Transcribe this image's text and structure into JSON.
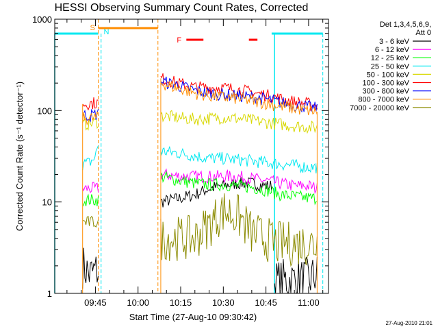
{
  "chart_data": {
    "type": "line",
    "title": "HESSI Observing Summary Count Rates, Corrected",
    "xlabel": "Start Time (27-Aug-10 09:30:42)",
    "ylabel": "Corrected Count Rate (s⁻¹ detector⁻¹)",
    "x_unit": "time (HH:MM, 27-Aug-2010)",
    "xlim": [
      "09:30:42",
      "11:07"
    ],
    "ylim": [
      1,
      1000
    ],
    "y_scale": "log",
    "x_ticks": [
      "09:45",
      "10:00",
      "10:15",
      "10:30",
      "10:45",
      "11:00"
    ],
    "y_ticks": [
      {
        "value": 1,
        "label": "1"
      },
      {
        "value": 10,
        "label": "10"
      },
      {
        "value": 100,
        "label": "100"
      },
      {
        "value": 1000,
        "label": "1000"
      }
    ],
    "legend": {
      "position": "right",
      "header1": "Det 1,3,4,5,6,9,",
      "header2": "Att 0"
    },
    "series": [
      {
        "name": "3 - 6 keV",
        "color": "#000000",
        "segments": [
          {
            "x": [
              "09:40:30",
              "09:43",
              "09:46"
            ],
            "y": [
              2.0,
              1.6,
              1.8
            ]
          },
          {
            "x": [
              "10:08",
              "10:15",
              "10:20",
              "10:25",
              "10:30",
              "10:35",
              "10:40",
              "10:45",
              "10:47"
            ],
            "y": [
              10,
              11,
              12,
              14,
              15,
              16,
              16,
              15,
              15
            ]
          },
          {
            "x": [
              "10:48",
              "10:52",
              "10:56",
              "11:00",
              "11:03"
            ],
            "y": [
              1.3,
              1.4,
              1.4,
              1.4,
              1.6
            ]
          }
        ]
      },
      {
        "name": "6 - 12 keV",
        "color": "#ff00ff",
        "segments": [
          {
            "x": [
              "09:40:30",
              "09:43",
              "09:46"
            ],
            "y": [
              14,
              14,
              14
            ]
          },
          {
            "x": [
              "10:08",
              "10:15",
              "10:20",
              "10:25",
              "10:30",
              "10:35",
              "10:40",
              "10:45",
              "10:50",
              "10:55",
              "11:00",
              "11:03"
            ],
            "y": [
              20,
              19,
              19,
              19,
              19,
              19,
              18,
              17,
              16,
              15,
              15,
              14
            ]
          }
        ]
      },
      {
        "name": "12 - 25 keV",
        "color": "#00ff00",
        "segments": [
          {
            "x": [
              "09:40:30",
              "09:43",
              "09:46"
            ],
            "y": [
              10.5,
              10.5,
              10.5
            ]
          },
          {
            "x": [
              "10:08",
              "10:15",
              "10:20",
              "10:25",
              "10:30",
              "10:35",
              "10:40",
              "10:45",
              "10:50",
              "10:55",
              "11:00",
              "11:03"
            ],
            "y": [
              19,
              17,
              16,
              15.5,
              15.5,
              15,
              14.5,
              13.5,
              12,
              11.5,
              11,
              11
            ]
          }
        ]
      },
      {
        "name": "25 - 50 keV",
        "color": "#00e8f0",
        "segments": [
          {
            "x": [
              "09:40:30",
              "09:43",
              "09:45",
              "09:46"
            ],
            "y": [
              26,
              27,
              31,
              43
            ]
          },
          {
            "x": [
              "10:08",
              "10:15",
              "10:20",
              "10:25",
              "10:30",
              "10:35",
              "10:40",
              "10:45",
              "10:50",
              "10:55",
              "11:00",
              "11:03"
            ],
            "y": [
              36,
              34,
              32,
              30,
              30,
              29,
              28,
              27,
              26,
              25,
              24,
              24
            ]
          }
        ]
      },
      {
        "name": "50 - 100 keV",
        "color": "#d8d800",
        "segments": [
          {
            "x": [
              "09:40:30",
              "09:43",
              "09:46"
            ],
            "y": [
              70,
              72,
              76
            ]
          },
          {
            "x": [
              "10:08",
              "10:15",
              "10:20",
              "10:25",
              "10:30",
              "10:35",
              "10:40",
              "10:45",
              "10:50",
              "10:55",
              "11:00",
              "11:03"
            ],
            "y": [
              88,
              83,
              80,
              82,
              84,
              82,
              78,
              74,
              71,
              68,
              66,
              65
            ]
          }
        ]
      },
      {
        "name": "100 - 300 keV",
        "color": "#ff0000",
        "segments": [
          {
            "x": [
              "09:40:30",
              "09:43",
              "09:46"
            ],
            "y": [
              118,
              120,
              122
            ]
          },
          {
            "x": [
              "10:08",
              "10:15",
              "10:20",
              "10:25",
              "10:30",
              "10:35",
              "10:40",
              "10:45",
              "10:50",
              "10:55",
              "11:00",
              "11:03"
            ],
            "y": [
              225,
              195,
              180,
              178,
              178,
              170,
              158,
              148,
              135,
              125,
              118,
              112
            ]
          }
        ]
      },
      {
        "name": "300 - 800 keV",
        "color": "#0000ff",
        "segments": [
          {
            "x": [
              "09:40:30",
              "09:43",
              "09:46"
            ],
            "y": [
              90,
              88,
              92
            ]
          },
          {
            "x": [
              "10:08",
              "10:15",
              "10:20",
              "10:25",
              "10:30",
              "10:35",
              "10:40",
              "10:45",
              "10:50",
              "10:55",
              "11:00",
              "11:03"
            ],
            "y": [
              210,
              185,
              165,
              155,
              150,
              145,
              140,
              133,
              123,
              115,
              110,
              105
            ]
          }
        ]
      },
      {
        "name": "800 - 7000 keV",
        "color": "#ff8c00",
        "segments": [
          {
            "x": [
              "09:40:30",
              "09:43",
              "09:46"
            ],
            "y": [
              82,
              82,
              84
            ]
          },
          {
            "x": [
              "10:08",
              "10:15",
              "10:20",
              "10:25",
              "10:30",
              "10:35",
              "10:40",
              "10:45",
              "10:50",
              "10:55",
              "11:00",
              "11:03"
            ],
            "y": [
              200,
              172,
              155,
              145,
              140,
              135,
              128,
              120,
              112,
              105,
              100,
              97
            ]
          }
        ]
      },
      {
        "name": "7000 - 20000 keV",
        "color": "#8b8b00",
        "segments": [
          {
            "x": [
              "09:40:30",
              "09:43",
              "09:46"
            ],
            "y": [
              6,
              6,
              6
            ]
          },
          {
            "x": [
              "10:08",
              "10:15",
              "10:20",
              "10:25",
              "10:30",
              "10:35",
              "10:40",
              "10:45",
              "10:48"
            ],
            "y": [
              4,
              4,
              4,
              5.5,
              8,
              7,
              4.5,
              4,
              3.5
            ]
          },
          {
            "x": [
              "10:48",
              "10:55",
              "11:00",
              "11:03"
            ],
            "y": [
              3.5,
              3.5,
              3.5,
              3.5
            ]
          }
        ]
      }
    ],
    "annotations": {
      "saa": {
        "label": "S",
        "color": "#ff8c00",
        "x_start": "09:46",
        "x_end": "10:07"
      },
      "night": {
        "label": "N",
        "color": "#00e8f0",
        "bars": [
          [
            "09:30:42",
            "09:46"
          ],
          [
            "10:47",
            "11:05"
          ]
        ]
      },
      "flare": {
        "label": "F",
        "color": "#ff0000",
        "bars": [
          [
            "10:17",
            "10:23"
          ],
          [
            "10:39",
            "10:42"
          ]
        ]
      },
      "vlines_orange": [
        "09:46",
        "10:07"
      ],
      "vlines_cyan_solid": [
        "09:30:42",
        "10:48"
      ],
      "vlines_cyan_dashed": [
        "09:47",
        "11:05"
      ]
    }
  },
  "footer": {
    "timestamp": "27-Aug-2010 21:01"
  }
}
